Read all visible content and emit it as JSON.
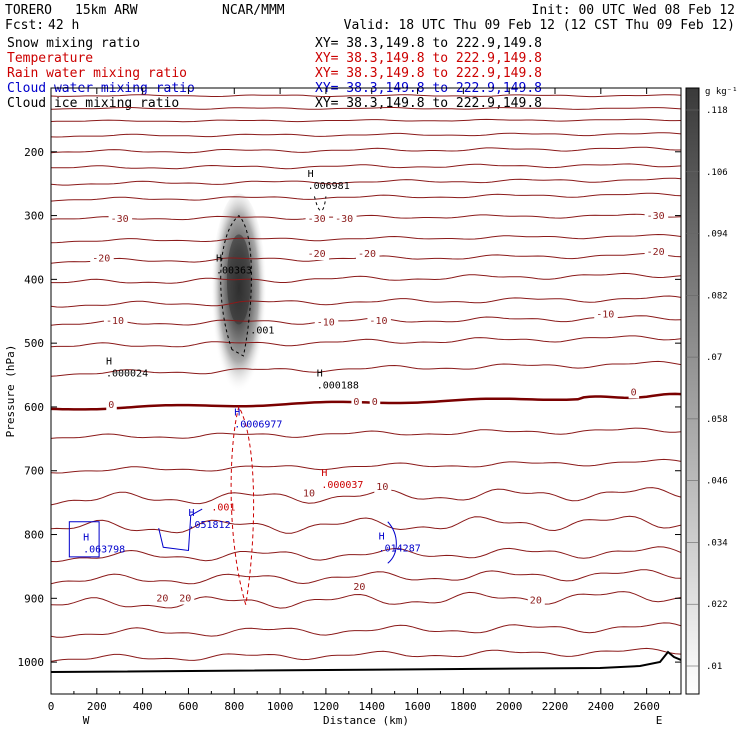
{
  "header": {
    "model": "TORERO",
    "resolution": "15km ARW",
    "org": "NCAR/MMM",
    "init": "Init: 00 UTC Wed 08 Feb 12",
    "fcst_label": "Fcst:",
    "fcst_hours": "42 h",
    "valid": "Valid: 18 UTC Thu 09 Feb 12 (12 CST Thu 09 Feb 12)"
  },
  "legend": [
    {
      "name": "Snow mixing ratio",
      "xy": "XY=  38.3,149.8 to 222.9,149.8",
      "color": "#000000"
    },
    {
      "name": "Temperature",
      "xy": "XY=  38.3,149.8 to 222.9,149.8",
      "color": "#cc0000"
    },
    {
      "name": "Rain water mixing ratio",
      "xy": "XY=  38.3,149.8 to 222.9,149.8",
      "color": "#cc0000"
    },
    {
      "name": "Cloud water mixing ratio",
      "xy": "XY=  38.3,149.8 to 222.9,149.8",
      "color": "#0000cc"
    },
    {
      "name": "Cloud ice mixing ratio",
      "xy": "XY=  38.3,149.8 to 222.9,149.8",
      "color": "#000000"
    }
  ],
  "chart_data": {
    "type": "cross-section",
    "xlabel": "Distance (km)",
    "ylabel": "Pressure (hPa)",
    "xlim": [
      0,
      2750
    ],
    "ylim": [
      1050,
      100
    ],
    "x_ticks": [
      0,
      200,
      400,
      600,
      800,
      1000,
      1200,
      1400,
      1600,
      1800,
      2000,
      2200,
      2400,
      2600
    ],
    "y_ticks": [
      200,
      300,
      400,
      500,
      600,
      700,
      800,
      900,
      1000
    ],
    "end_labels": {
      "left": "W",
      "right": "E"
    },
    "colorbar": {
      "unit": "g kg⁻¹",
      "ticks": [
        ".01",
        ".022",
        ".034",
        ".046",
        ".058",
        ".07",
        ".082",
        ".094",
        ".106",
        ".118"
      ]
    },
    "temperature_labels": [
      {
        "text": "-30",
        "x": 260,
        "p": 310
      },
      {
        "text": "-30",
        "x": 1120,
        "p": 310
      },
      {
        "text": "-30",
        "x": 1240,
        "p": 310
      },
      {
        "text": "-30",
        "x": 2600,
        "p": 305
      },
      {
        "text": "-20",
        "x": 180,
        "p": 372
      },
      {
        "text": "-20",
        "x": 1120,
        "p": 365
      },
      {
        "text": "-20",
        "x": 1340,
        "p": 365
      },
      {
        "text": "-20",
        "x": 2600,
        "p": 362
      },
      {
        "text": "-10",
        "x": 240,
        "p": 470
      },
      {
        "text": "-10",
        "x": 1160,
        "p": 472
      },
      {
        "text": "-10",
        "x": 1390,
        "p": 470
      },
      {
        "text": "-10",
        "x": 2380,
        "p": 460
      },
      {
        "text": "0",
        "x": 250,
        "p": 602
      },
      {
        "text": "0",
        "x": 1320,
        "p": 597
      },
      {
        "text": "0",
        "x": 1400,
        "p": 597
      },
      {
        "text": "0",
        "x": 2530,
        "p": 582
      },
      {
        "text": "10",
        "x": 1100,
        "p": 740
      },
      {
        "text": "10",
        "x": 1420,
        "p": 730
      },
      {
        "text": "20",
        "x": 460,
        "p": 905
      },
      {
        "text": "20",
        "x": 560,
        "p": 905
      },
      {
        "text": "20",
        "x": 1320,
        "p": 887
      },
      {
        "text": "20",
        "x": 2090,
        "p": 908
      }
    ],
    "maxima": [
      {
        "text": ".006981",
        "x": 1120,
        "p": 258,
        "color": "#000000"
      },
      {
        "text": ".00363",
        "x": 720,
        "p": 391,
        "color": "#000000"
      },
      {
        "text": ".000024",
        "x": 240,
        "p": 552,
        "color": "#000000"
      },
      {
        "text": ".000188",
        "x": 1160,
        "p": 571,
        "color": "#000000"
      },
      {
        "text": ".0006977",
        "x": 800,
        "p": 632,
        "color": "#0000cc"
      },
      {
        "text": ".000037",
        "x": 1180,
        "p": 727,
        "color": "#cc0000"
      },
      {
        "text": ".051812",
        "x": 600,
        "p": 790,
        "color": "#0000cc"
      },
      {
        "text": ".063798",
        "x": 140,
        "p": 828,
        "color": "#0000cc"
      },
      {
        "text": ".014287",
        "x": 1430,
        "p": 827,
        "color": "#0000cc"
      }
    ],
    "contour_labels": [
      {
        "text": ".001",
        "x": 870,
        "p": 485,
        "color": "#000000"
      },
      {
        "text": ".001",
        "x": 700,
        "p": 762,
        "color": "#cc0000"
      }
    ]
  }
}
